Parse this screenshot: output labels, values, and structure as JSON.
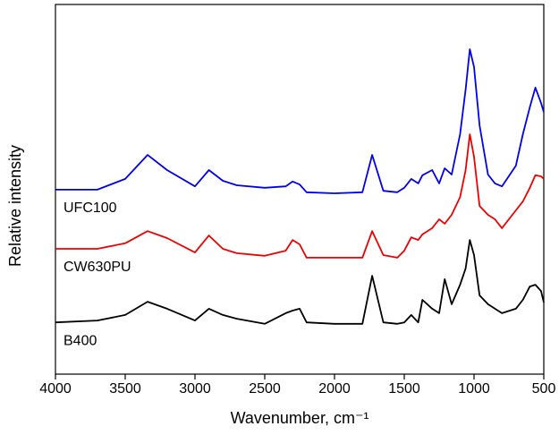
{
  "chart_data": {
    "type": "line",
    "x_label": "Wavenumber, cm⁻¹",
    "y_label": "Relative intensity",
    "x": [
      4000,
      3700,
      3500,
      3340,
      3200,
      3000,
      2900,
      2800,
      2700,
      2500,
      2350,
      2300,
      2250,
      2200,
      2000,
      1800,
      1730,
      1650,
      1550,
      1500,
      1450,
      1400,
      1370,
      1300,
      1250,
      1210,
      1160,
      1100,
      1060,
      1030,
      1000,
      960,
      900,
      850,
      800,
      700,
      650,
      600,
      560,
      520,
      500
    ],
    "xlim": [
      4000,
      500
    ],
    "xticks": [
      4000,
      3500,
      3000,
      2500,
      2000,
      1500,
      1000,
      500
    ],
    "ylim": [
      0,
      100
    ],
    "series": [
      {
        "name": "UFC100",
        "color": "#0000ee",
        "values": [
          49.9,
          49.9,
          52.8,
          59.3,
          55.2,
          50.8,
          55.2,
          52.3,
          51.1,
          50.4,
          50.8,
          52.1,
          51.3,
          49.2,
          48.9,
          49.2,
          59.3,
          49.6,
          49.2,
          50.4,
          52.8,
          51.6,
          53.8,
          55.2,
          51.6,
          55.7,
          54.0,
          64.9,
          77.0,
          87.9,
          83.1,
          67.3,
          54.0,
          51.6,
          50.8,
          56.4,
          64.9,
          72.2,
          77.5,
          73.4,
          70.9
        ]
      },
      {
        "name": "CW630PU",
        "color": "#ee0000",
        "values": [
          33.9,
          33.9,
          35.4,
          38.7,
          36.8,
          32.9,
          37.5,
          33.9,
          32.7,
          32.0,
          33.4,
          36.3,
          35.1,
          31.5,
          31.5,
          31.5,
          38.7,
          32.2,
          31.5,
          33.4,
          37.0,
          36.3,
          37.8,
          39.5,
          41.9,
          40.7,
          43.1,
          47.9,
          55.2,
          64.9,
          58.8,
          45.5,
          43.1,
          41.9,
          39.5,
          44.3,
          46.7,
          50.4,
          53.8,
          53.5,
          52.8
        ]
      },
      {
        "name": "B400",
        "color": "#000000",
        "values": [
          14.0,
          14.5,
          16.0,
          19.6,
          17.7,
          14.5,
          17.7,
          16.0,
          15.0,
          13.6,
          16.5,
          17.2,
          17.7,
          14.0,
          13.6,
          13.6,
          26.6,
          14.0,
          13.6,
          14.0,
          16.0,
          14.0,
          20.1,
          17.7,
          16.5,
          25.7,
          18.9,
          24.2,
          28.6,
          36.3,
          32.2,
          21.3,
          18.9,
          17.7,
          16.5,
          17.7,
          20.1,
          23.7,
          24.2,
          22.5,
          19.4
        ]
      }
    ]
  }
}
